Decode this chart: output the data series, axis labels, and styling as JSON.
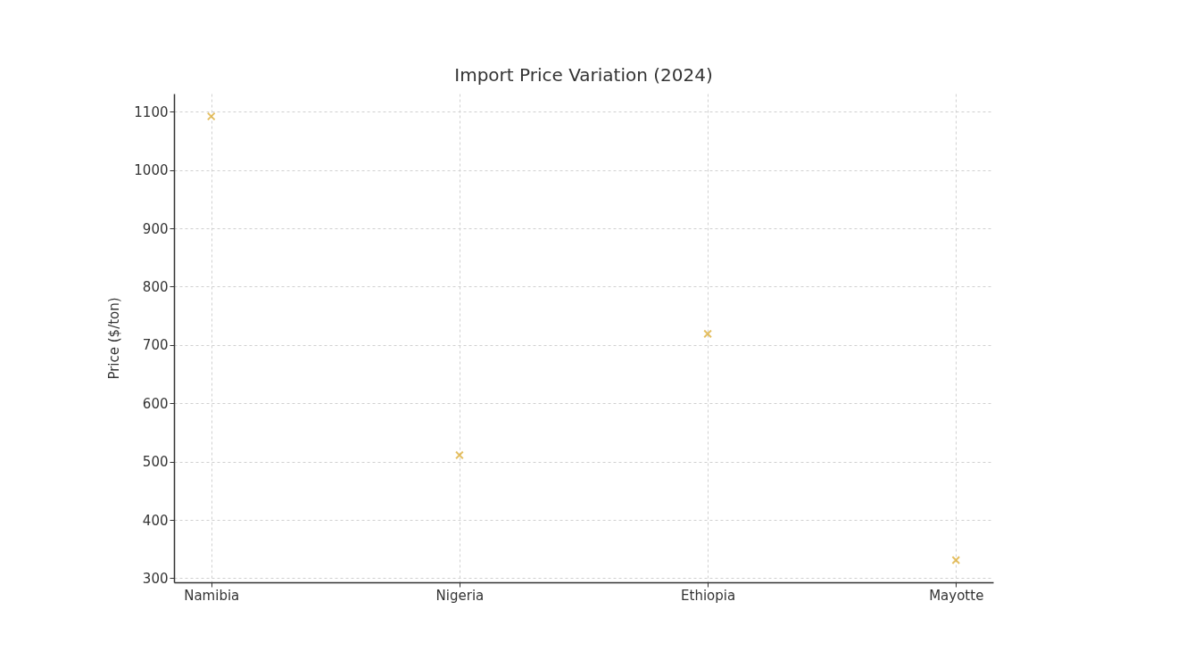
{
  "chart_data": {
    "type": "scatter",
    "title": "Import Price Variation (2024)",
    "ylabel": "Price ($/ton)",
    "categories": [
      "Namibia",
      "Nigeria",
      "Ethiopia",
      "Mayotte"
    ],
    "series": [
      {
        "color": "#daa520",
        "values": [
          1092,
          511,
          719,
          331
        ]
      }
    ],
    "ylim": [
      293,
      1131
    ],
    "yticks": [
      300,
      400,
      500,
      600,
      700,
      800,
      900,
      1000,
      1100
    ],
    "grid": true,
    "marker": "cross"
  }
}
